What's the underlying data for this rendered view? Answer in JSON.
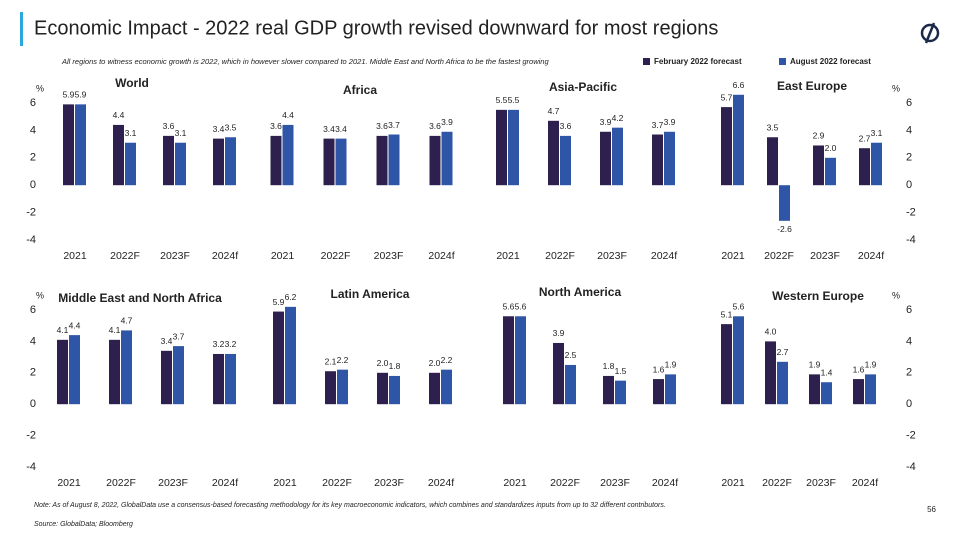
{
  "title": "Economic Impact - 2022 real GDP growth revised downward for most regions",
  "subtitle": "All regions to witness economic growth is 2022, which in however slower compared to 2021. Middle East and North Africa to be the fastest growing",
  "note": "Note: As of August 8, 2022, GlobalData use a consensus-based forecasting methodology for its key macroeconomic indicators, which combines and standardizes inputs from up to 32 different contributors.",
  "source": "Source: GlobalData; Bloomberg",
  "page": "56",
  "chart_data": [
    {
      "type": "bar",
      "title": "World",
      "categories": [
        "2021",
        "2022F",
        "2023F",
        "2024f"
      ],
      "ylim": [
        -4,
        6
      ],
      "yticks": [
        -4,
        -2,
        0,
        2,
        4,
        6
      ],
      "ylabel": "%",
      "axis_side": "left",
      "series": [
        {
          "name": "February 2022 forecast",
          "color": "#2d1f4e",
          "values": [
            5.9,
            4.4,
            3.6,
            3.4
          ]
        },
        {
          "name": "August 2022 forecast",
          "color": "#2f56a6",
          "values": [
            5.9,
            3.1,
            3.1,
            3.5
          ]
        }
      ]
    },
    {
      "type": "bar",
      "title": "Africa",
      "categories": [
        "2021",
        "2022F",
        "2023F",
        "2024f"
      ],
      "ylim": [
        -4,
        6
      ],
      "series": [
        {
          "name": "February 2022 forecast",
          "color": "#2d1f4e",
          "values": [
            3.6,
            3.4,
            3.6,
            3.6
          ]
        },
        {
          "name": "August 2022 forecast",
          "color": "#2f56a6",
          "values": [
            4.4,
            3.4,
            3.7,
            3.9
          ]
        }
      ]
    },
    {
      "type": "bar",
      "title": "Asia-Pacific",
      "categories": [
        "2021",
        "2022F",
        "2023F",
        "2024f"
      ],
      "ylim": [
        -4,
        6
      ],
      "series": [
        {
          "name": "February 2022 forecast",
          "color": "#2d1f4e",
          "values": [
            5.5,
            4.7,
            3.9,
            3.7
          ]
        },
        {
          "name": "August 2022 forecast",
          "color": "#2f56a6",
          "values": [
            5.5,
            3.6,
            4.2,
            3.9
          ]
        }
      ]
    },
    {
      "type": "bar",
      "title": "East Europe",
      "categories": [
        "2021",
        "2022F",
        "2023F",
        "2024f"
      ],
      "ylim": [
        -4,
        6
      ],
      "yticks": [
        -4,
        -2,
        0,
        2,
        4,
        6
      ],
      "ylabel": "%",
      "axis_side": "right",
      "series": [
        {
          "name": "February 2022 forecast",
          "color": "#2d1f4e",
          "values": [
            5.7,
            3.5,
            2.9,
            2.7
          ]
        },
        {
          "name": "August 2022 forecast",
          "color": "#2f56a6",
          "values": [
            6.6,
            -2.6,
            2.0,
            3.1
          ],
          "value_labels": [
            "6.6",
            "-2.6",
            "2.0",
            "3.1"
          ]
        }
      ]
    },
    {
      "type": "bar",
      "title": "Middle East and North Africa",
      "categories": [
        "2021",
        "2022F",
        "2023F",
        "2024f"
      ],
      "ylim": [
        -4,
        6
      ],
      "yticks": [
        -4,
        -2,
        0,
        2,
        4,
        6
      ],
      "ylabel": "%",
      "axis_side": "left",
      "series": [
        {
          "name": "February 2022 forecast",
          "color": "#2d1f4e",
          "values": [
            4.1,
            4.1,
            3.4,
            3.2
          ]
        },
        {
          "name": "August 2022 forecast",
          "color": "#2f56a6",
          "values": [
            4.4,
            4.7,
            3.7,
            3.2
          ]
        }
      ]
    },
    {
      "type": "bar",
      "title": "Latin America",
      "categories": [
        "2021",
        "2022F",
        "2023F",
        "2024f"
      ],
      "ylim": [
        -4,
        6
      ],
      "series": [
        {
          "name": "February 2022 forecast",
          "color": "#2d1f4e",
          "values": [
            5.9,
            2.1,
            2.0,
            2.0
          ],
          "value_labels": [
            "5.9",
            "2.1",
            "2.0",
            "2.0"
          ]
        },
        {
          "name": "August 2022 forecast",
          "color": "#2f56a6",
          "values": [
            6.2,
            2.2,
            1.8,
            2.2
          ]
        }
      ]
    },
    {
      "type": "bar",
      "title": "North America",
      "categories": [
        "2021",
        "2022F",
        "2023F",
        "2024f"
      ],
      "ylim": [
        -4,
        6
      ],
      "series": [
        {
          "name": "February 2022 forecast",
          "color": "#2d1f4e",
          "values": [
            5.6,
            3.9,
            1.8,
            1.6
          ]
        },
        {
          "name": "August 2022 forecast",
          "color": "#2f56a6",
          "values": [
            5.6,
            2.5,
            1.5,
            1.9
          ]
        }
      ]
    },
    {
      "type": "bar",
      "title": "Western Europe",
      "categories": [
        "2021",
        "2022F",
        "2023F",
        "2024f"
      ],
      "ylim": [
        -4,
        6
      ],
      "yticks": [
        -4,
        -2,
        0,
        2,
        4,
        6
      ],
      "ylabel": "%",
      "axis_side": "right",
      "series": [
        {
          "name": "February 2022 forecast",
          "color": "#2d1f4e",
          "values": [
            5.1,
            4.0,
            1.9,
            1.6
          ],
          "value_labels": [
            "5.1",
            "4.0",
            "1.9",
            "1.6"
          ]
        },
        {
          "name": "August 2022 forecast",
          "color": "#2f56a6",
          "values": [
            5.6,
            2.7,
            1.4,
            1.9
          ]
        }
      ]
    }
  ]
}
